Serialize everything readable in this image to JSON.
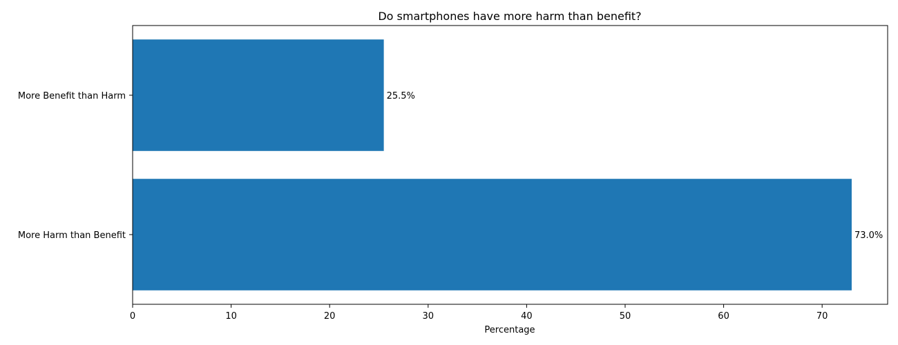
{
  "chart_data": {
    "type": "bar",
    "orientation": "horizontal",
    "title": "Do smartphones have more harm than benefit?",
    "xlabel": "Percentage",
    "ylabel": "",
    "categories": [
      "More Benefit than Harm",
      "More Harm than Benefit"
    ],
    "values": [
      25.5,
      73.0
    ],
    "data_labels": [
      "25.5%",
      "73.0%"
    ],
    "xlim": [
      0,
      76.65
    ],
    "xticks": [
      0,
      10,
      20,
      30,
      40,
      50,
      60,
      70
    ],
    "grid": false,
    "legend": "none",
    "bar_color": "#1f77b4"
  }
}
